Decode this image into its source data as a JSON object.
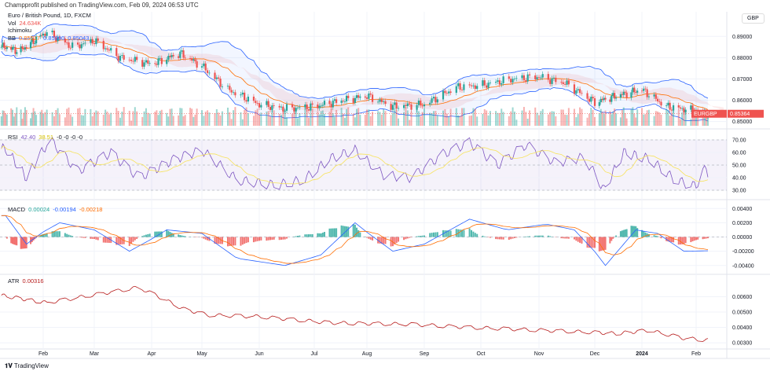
{
  "header": "Champprofit published on TradingView.com, Feb 09, 2024 06:53 UTC",
  "currency": "GBP",
  "footer": "TradingView",
  "legend": {
    "symbol": "Euro / British Pound, 1D, FXCM",
    "vol_label": "Vol",
    "vol_value": "24.634K",
    "ichimoku": "Ichimoku",
    "bb_label": "BB",
    "bb_basis": "0.85517",
    "bb_upper": "0.85990",
    "bb_lower": "0.85043",
    "rsi_label": "RSI",
    "rsi_value": "42.40",
    "rsi_ma": "38.51",
    "rsi_extra": "-0 -0 -0 -0",
    "macd_label": "MACD",
    "macd_hist": "0.00024",
    "macd_line": "-0.00194",
    "macd_signal": "-0.00218",
    "atr_label": "ATR",
    "atr_value": "0.00316"
  },
  "last_price": {
    "symbol": "EURGBP",
    "value": "0.85364"
  },
  "colors": {
    "up": "#26a69a",
    "down": "#ef5350",
    "bb": "#2962ff",
    "basis": "#ff6d00",
    "rsi": "#7e57c2",
    "rsi_ma": "#f7e35c",
    "atr": "#b71c1c",
    "macd": "#2962ff",
    "signal": "#ff6d00"
  },
  "chart_data": [
    {
      "type": "candlestick",
      "title": "Euro / British Pound, 1D, FXCM",
      "x_ticks": [
        "Feb",
        "Mar",
        "Apr",
        "May",
        "Jun",
        "Jul",
        "Aug",
        "Sep",
        "Oct",
        "Nov",
        "Dec",
        "2024",
        "Feb"
      ],
      "y_ticks": [
        "0.89000",
        "0.88000",
        "0.87000",
        "0.86000",
        "0.85000"
      ],
      "ylim": [
        0.848,
        0.896
      ],
      "close": [
        [
          "2023-01-05",
          0.885
        ],
        [
          "2023-01-15",
          0.883
        ],
        [
          "2023-02-03",
          0.892
        ],
        [
          "2023-02-17",
          0.885
        ],
        [
          "2023-03-01",
          0.888
        ],
        [
          "2023-03-15",
          0.88
        ],
        [
          "2023-04-01",
          0.877
        ],
        [
          "2023-04-18",
          0.882
        ],
        [
          "2023-05-01",
          0.876
        ],
        [
          "2023-05-15",
          0.865
        ],
        [
          "2023-06-01",
          0.858
        ],
        [
          "2023-06-15",
          0.856
        ],
        [
          "2023-07-01",
          0.857
        ],
        [
          "2023-07-18",
          0.86
        ],
        [
          "2023-08-01",
          0.862
        ],
        [
          "2023-08-15",
          0.857
        ],
        [
          "2023-09-01",
          0.858
        ],
        [
          "2023-09-18",
          0.866
        ],
        [
          "2023-10-01",
          0.867
        ],
        [
          "2023-10-18",
          0.87
        ],
        [
          "2023-11-01",
          0.871
        ],
        [
          "2023-11-15",
          0.868
        ],
        [
          "2023-12-01",
          0.859
        ],
        [
          "2023-12-15",
          0.862
        ],
        [
          "2024-01-01",
          0.865
        ],
        [
          "2024-01-15",
          0.857
        ],
        [
          "2024-02-01",
          0.855
        ],
        [
          "2024-02-08",
          0.8536
        ]
      ]
    },
    {
      "type": "line",
      "title": "RSI",
      "y_ticks": [
        "70.00",
        "60.00",
        "50.00",
        "40.00",
        "30.00"
      ],
      "ylim": [
        25,
        75
      ],
      "values": [
        [
          "2023-01-05",
          63
        ],
        [
          "2023-01-20",
          40
        ],
        [
          "2023-02-05",
          70
        ],
        [
          "2023-02-20",
          45
        ],
        [
          "2023-03-10",
          60
        ],
        [
          "2023-03-25",
          40
        ],
        [
          "2023-04-15",
          55
        ],
        [
          "2023-05-01",
          62
        ],
        [
          "2023-05-20",
          38
        ],
        [
          "2023-06-10",
          34
        ],
        [
          "2023-06-25",
          38
        ],
        [
          "2023-07-10",
          55
        ],
        [
          "2023-07-25",
          62
        ],
        [
          "2023-08-10",
          42
        ],
        [
          "2023-08-25",
          40
        ],
        [
          "2023-09-10",
          58
        ],
        [
          "2023-09-25",
          68
        ],
        [
          "2023-10-10",
          50
        ],
        [
          "2023-10-25",
          66
        ],
        [
          "2023-11-10",
          52
        ],
        [
          "2023-11-25",
          56
        ],
        [
          "2023-12-07",
          30
        ],
        [
          "2023-12-20",
          60
        ],
        [
          "2024-01-05",
          55
        ],
        [
          "2024-01-20",
          38
        ],
        [
          "2024-02-01",
          33
        ],
        [
          "2024-02-05",
          48
        ],
        [
          "2024-02-08",
          42.4
        ]
      ]
    },
    {
      "type": "line",
      "title": "MACD",
      "y_ticks": [
        "0.00400",
        "0.00200",
        "0.00000",
        "-0.00200",
        "-0.00400"
      ],
      "ylim": [
        -0.0048,
        0.0048
      ],
      "values": [
        [
          "2023-01-05",
          0.003
        ],
        [
          "2023-01-20",
          -0.001
        ],
        [
          "2023-02-10",
          0.002
        ],
        [
          "2023-03-01",
          0.001
        ],
        [
          "2023-03-20",
          -0.002
        ],
        [
          "2023-04-10",
          0.001
        ],
        [
          "2023-05-01",
          0.0005
        ],
        [
          "2023-05-20",
          -0.003
        ],
        [
          "2023-06-15",
          -0.004
        ],
        [
          "2023-07-05",
          -0.0025
        ],
        [
          "2023-07-25",
          0.002
        ],
        [
          "2023-08-15",
          -0.002
        ],
        [
          "2023-09-01",
          -0.001
        ],
        [
          "2023-09-25",
          0.0025
        ],
        [
          "2023-10-15",
          0.001
        ],
        [
          "2023-11-05",
          0.0018
        ],
        [
          "2023-11-20",
          0.001
        ],
        [
          "2023-12-08",
          -0.004
        ],
        [
          "2023-12-28",
          0.001
        ],
        [
          "2024-01-10",
          0.0005
        ],
        [
          "2024-01-25",
          -0.002
        ],
        [
          "2024-02-08",
          -0.00194
        ]
      ]
    },
    {
      "type": "line",
      "title": "ATR",
      "y_ticks": [
        "0.00600",
        "0.00500",
        "0.00400",
        "0.00300"
      ],
      "ylim": [
        0.0028,
        0.0074
      ],
      "values": [
        [
          "2023-01-01",
          0.0061
        ],
        [
          "2023-02-03",
          0.0056
        ],
        [
          "2023-03-25",
          0.0066
        ],
        [
          "2023-04-20",
          0.0052
        ],
        [
          "2023-05-05",
          0.0048
        ],
        [
          "2023-06-01",
          0.0047
        ],
        [
          "2023-07-10",
          0.0043
        ],
        [
          "2023-08-25",
          0.0042
        ],
        [
          "2023-09-25",
          0.004
        ],
        [
          "2023-11-05",
          0.0038
        ],
        [
          "2023-12-15",
          0.0036
        ],
        [
          "2024-01-05",
          0.0038
        ],
        [
          "2024-01-25",
          0.0033
        ],
        [
          "2024-02-08",
          0.00316
        ]
      ]
    }
  ]
}
